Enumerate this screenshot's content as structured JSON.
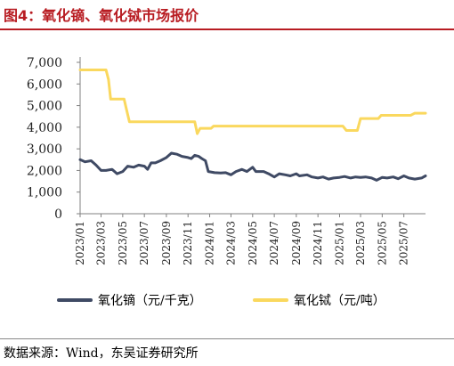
{
  "title": "图4：氧化镝、氧化铽市场报价",
  "source": "数据来源：Wind，东吴证券研究所",
  "colors": {
    "title": "#b81c22",
    "dy": "#3f4a64",
    "tb": "#fad85e",
    "axis": "#808080"
  },
  "chart_data": {
    "type": "line",
    "ylim": [
      0,
      7000
    ],
    "yticks": [
      0,
      1000,
      2000,
      3000,
      4000,
      5000,
      6000,
      7000
    ],
    "ytick_labels": [
      "0",
      "1,000",
      "2,000",
      "3,000",
      "4,000",
      "5,000",
      "6,000",
      "7,000"
    ],
    "xlim": [
      "2023-01-01",
      "2025-08-31"
    ],
    "xticks": [
      "2023-01-01",
      "2023-03-01",
      "2023-05-01",
      "2023-07-01",
      "2023-09-01",
      "2023-11-01",
      "2024-01-01",
      "2024-03-01",
      "2024-05-01",
      "2024-07-01",
      "2024-09-01",
      "2024-11-01",
      "2025-01-01",
      "2025-03-01",
      "2025-05-01",
      "2025-07-01"
    ],
    "xtick_labels": [
      "2023/01",
      "2023/03",
      "2023/05",
      "2023/07",
      "2023/09",
      "2023/11",
      "2024/01",
      "2024/03",
      "2024/05",
      "2024/07",
      "2024/09",
      "2024/11",
      "2025/01",
      "2025/03",
      "2025/05",
      "2025/07"
    ],
    "series": [
      {
        "name": "氧化镝（元/千克）",
        "color": "#3f4a64",
        "points": [
          [
            "2023-01-01",
            2500
          ],
          [
            "2023-01-15",
            2400
          ],
          [
            "2023-02-01",
            2450
          ],
          [
            "2023-02-15",
            2250
          ],
          [
            "2023-03-01",
            2000
          ],
          [
            "2023-03-15",
            2000
          ],
          [
            "2023-04-01",
            2050
          ],
          [
            "2023-04-15",
            1850
          ],
          [
            "2023-05-01",
            1950
          ],
          [
            "2023-05-15",
            2200
          ],
          [
            "2023-06-01",
            2150
          ],
          [
            "2023-06-15",
            2250
          ],
          [
            "2023-07-01",
            2200
          ],
          [
            "2023-07-10",
            2050
          ],
          [
            "2023-07-20",
            2350
          ],
          [
            "2023-08-01",
            2350
          ],
          [
            "2023-08-15",
            2450
          ],
          [
            "2023-09-01",
            2600
          ],
          [
            "2023-09-15",
            2800
          ],
          [
            "2023-10-01",
            2750
          ],
          [
            "2023-10-15",
            2650
          ],
          [
            "2023-11-01",
            2600
          ],
          [
            "2023-11-10",
            2550
          ],
          [
            "2023-11-20",
            2700
          ],
          [
            "2023-12-01",
            2650
          ],
          [
            "2023-12-10",
            2550
          ],
          [
            "2023-12-20",
            2450
          ],
          [
            "2023-12-28",
            1950
          ],
          [
            "2024-01-15",
            1900
          ],
          [
            "2024-02-01",
            1880
          ],
          [
            "2024-02-15",
            1900
          ],
          [
            "2024-03-01",
            1800
          ],
          [
            "2024-03-15",
            1950
          ],
          [
            "2024-04-01",
            2050
          ],
          [
            "2024-04-15",
            1950
          ],
          [
            "2024-05-01",
            2150
          ],
          [
            "2024-05-10",
            1950
          ],
          [
            "2024-06-01",
            1950
          ],
          [
            "2024-06-15",
            1850
          ],
          [
            "2024-07-01",
            1700
          ],
          [
            "2024-07-15",
            1850
          ],
          [
            "2024-08-01",
            1800
          ],
          [
            "2024-08-15",
            1750
          ],
          [
            "2024-09-01",
            1850
          ],
          [
            "2024-09-10",
            1750
          ],
          [
            "2024-10-01",
            1800
          ],
          [
            "2024-10-15",
            1700
          ],
          [
            "2024-11-01",
            1650
          ],
          [
            "2024-11-15",
            1700
          ],
          [
            "2024-12-01",
            1600
          ],
          [
            "2024-12-15",
            1650
          ],
          [
            "2025-01-01",
            1680
          ],
          [
            "2025-01-15",
            1720
          ],
          [
            "2025-02-01",
            1650
          ],
          [
            "2025-02-15",
            1700
          ],
          [
            "2025-03-01",
            1680
          ],
          [
            "2025-03-15",
            1700
          ],
          [
            "2025-04-01",
            1650
          ],
          [
            "2025-04-15",
            1550
          ],
          [
            "2025-05-01",
            1680
          ],
          [
            "2025-05-15",
            1650
          ],
          [
            "2025-06-01",
            1700
          ],
          [
            "2025-06-15",
            1620
          ],
          [
            "2025-07-01",
            1750
          ],
          [
            "2025-07-15",
            1650
          ],
          [
            "2025-08-01",
            1600
          ],
          [
            "2025-08-20",
            1650
          ],
          [
            "2025-08-31",
            1750
          ]
        ]
      },
      {
        "name": "氧化铽（元/吨）",
        "color": "#fad85e",
        "points": [
          [
            "2023-01-01",
            6650
          ],
          [
            "2023-03-15",
            6650
          ],
          [
            "2023-03-22",
            6200
          ],
          [
            "2023-03-28",
            5300
          ],
          [
            "2023-05-05",
            5300
          ],
          [
            "2023-05-12",
            4800
          ],
          [
            "2023-05-20",
            4250
          ],
          [
            "2023-11-20",
            4250
          ],
          [
            "2023-11-27",
            3700
          ],
          [
            "2023-12-05",
            3950
          ],
          [
            "2024-01-05",
            3950
          ],
          [
            "2024-01-12",
            4050
          ],
          [
            "2024-11-01",
            4050
          ],
          [
            "2025-01-10",
            4050
          ],
          [
            "2025-01-20",
            3850
          ],
          [
            "2025-02-20",
            3850
          ],
          [
            "2025-03-01",
            4400
          ],
          [
            "2025-04-20",
            4400
          ],
          [
            "2025-04-28",
            4550
          ],
          [
            "2025-07-20",
            4550
          ],
          [
            "2025-08-01",
            4650
          ],
          [
            "2025-08-31",
            4650
          ]
        ]
      }
    ]
  }
}
